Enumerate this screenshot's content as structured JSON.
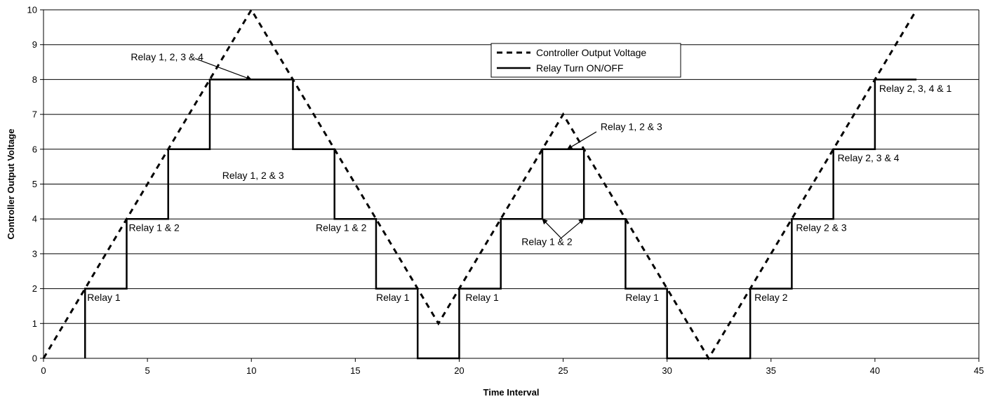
{
  "chart_data": {
    "type": "line",
    "title": "",
    "xlabel": "Time Interval",
    "ylabel": "Controller Output Voltage",
    "xlim": [
      0,
      45
    ],
    "ylim": [
      0,
      10
    ],
    "xticks": [
      0,
      5,
      10,
      15,
      20,
      25,
      30,
      35,
      40,
      45
    ],
    "yticks": [
      0,
      1,
      2,
      3,
      4,
      5,
      6,
      7,
      8,
      9,
      10
    ],
    "grid": "horizontal",
    "legend_position": "top-center",
    "series": [
      {
        "name": "Controller Output Voltage",
        "style": "dashed",
        "color": "#000000",
        "x": [
          0,
          10,
          19,
          25,
          32,
          42
        ],
        "y": [
          0,
          10,
          1,
          7,
          0,
          10
        ]
      },
      {
        "name": "Relay Turn ON/OFF",
        "style": "solid",
        "color": "#000000",
        "x": [
          2,
          2,
          4,
          4,
          6,
          6,
          8,
          8,
          12,
          12,
          14,
          14,
          16,
          16,
          18,
          18,
          20,
          20,
          22,
          22,
          24,
          24,
          26,
          26,
          28,
          28,
          30,
          30,
          34,
          34,
          36,
          36,
          38,
          38,
          40,
          40,
          42
        ],
        "y": [
          0,
          2,
          2,
          4,
          4,
          6,
          6,
          8,
          8,
          6,
          6,
          4,
          4,
          2,
          2,
          0,
          0,
          2,
          2,
          4,
          4,
          6,
          6,
          4,
          4,
          2,
          2,
          0,
          0,
          2,
          2,
          4,
          4,
          6,
          6,
          8,
          8
        ]
      }
    ],
    "annotations": [
      {
        "text": "Relay 1, 2, 3 & 4",
        "x": 4.2,
        "y": 8.55,
        "arrow_from": [
          7.3,
          8.6
        ],
        "arrow_to": [
          10,
          8
        ]
      },
      {
        "text": "Relay 1, 2 & 3",
        "x": 8.6,
        "y": 5.15
      },
      {
        "text": "Relay 1 & 2",
        "x": 4.1,
        "y": 3.65
      },
      {
        "text": "Relay 1",
        "x": 2.1,
        "y": 1.65
      },
      {
        "text": "Relay 1 & 2",
        "x": 13.1,
        "y": 3.65
      },
      {
        "text": "Relay 1",
        "x": 16.0,
        "y": 1.65
      },
      {
        "text": "Relay 1",
        "x": 20.3,
        "y": 1.65
      },
      {
        "text": "Relay 1, 2 & 3",
        "x": 26.8,
        "y": 6.55,
        "arrow_from": [
          26.6,
          6.5
        ],
        "arrow_to": [
          25.2,
          6
        ]
      },
      {
        "text": "Relay 1 & 2",
        "x": 23.0,
        "y": 3.25,
        "arrow_from": [
          24.9,
          3.45
        ],
        "arrow_to": [
          [
            24,
            4
          ],
          [
            26,
            4
          ]
        ]
      },
      {
        "text": "Relay 1",
        "x": 28.0,
        "y": 1.65
      },
      {
        "text": "Relay 2",
        "x": 34.2,
        "y": 1.65
      },
      {
        "text": "Relay 2 & 3",
        "x": 36.2,
        "y": 3.65
      },
      {
        "text": "Relay 2, 3 & 4",
        "x": 38.2,
        "y": 5.65
      },
      {
        "text": "Relay 2, 3, 4 & 1",
        "x": 40.2,
        "y": 7.65
      }
    ]
  }
}
